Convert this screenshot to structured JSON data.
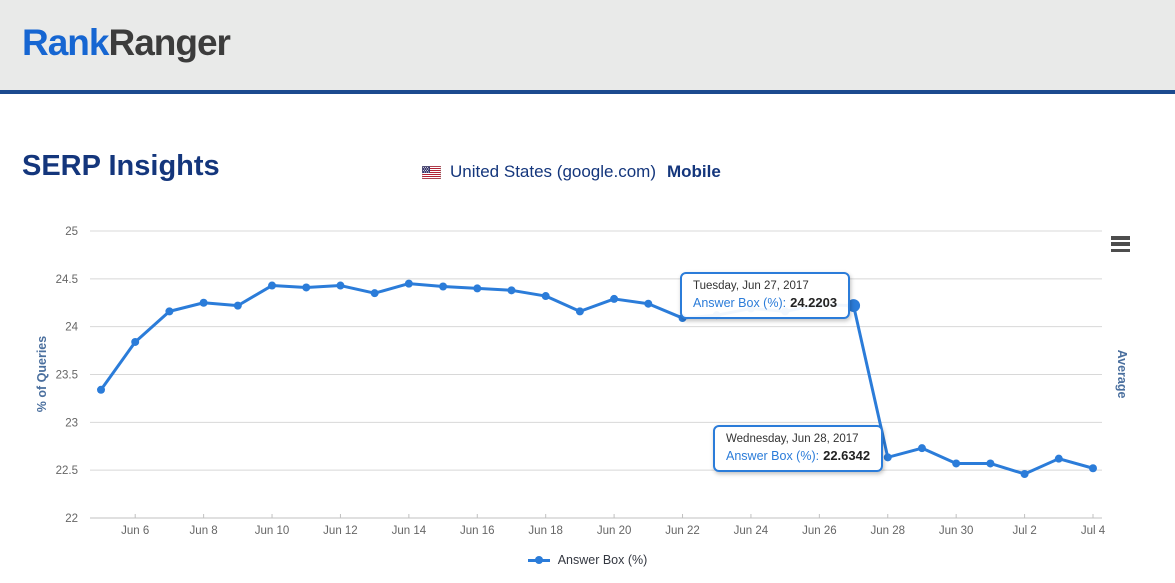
{
  "header": {
    "logo_primary": "Rank",
    "logo_secondary": "Ranger"
  },
  "page": {
    "title": "SERP Insights",
    "subtitle_location": "United States (google.com)",
    "subtitle_device": "Mobile"
  },
  "chart_data": {
    "type": "line",
    "title": "",
    "x": [
      "Jun 5",
      "Jun 6",
      "Jun 7",
      "Jun 8",
      "Jun 9",
      "Jun 10",
      "Jun 11",
      "Jun 12",
      "Jun 13",
      "Jun 14",
      "Jun 15",
      "Jun 16",
      "Jun 17",
      "Jun 18",
      "Jun 19",
      "Jun 20",
      "Jun 21",
      "Jun 22",
      "Jun 23",
      "Jun 24",
      "Jun 25",
      "Jun 26",
      "Jun 27",
      "Jun 28",
      "Jun 29",
      "Jun 30",
      "Jul 1",
      "Jul 2",
      "Jul 3",
      "Jul 4"
    ],
    "series": [
      {
        "name": "Answer Box (%)",
        "color": "#2b7cd9",
        "values": [
          23.34,
          23.84,
          24.16,
          24.25,
          24.22,
          24.43,
          24.41,
          24.43,
          24.35,
          24.45,
          24.42,
          24.4,
          24.38,
          24.32,
          24.16,
          24.29,
          24.24,
          24.09,
          24.12,
          24.19,
          24.16,
          24.23,
          24.2203,
          22.6342,
          22.73,
          22.57,
          22.57,
          22.46,
          22.62,
          22.52
        ]
      }
    ],
    "ylabel_left": "% of Queries",
    "ylabel_right": "Average",
    "ylim": [
      22,
      25
    ],
    "ytick_step": 0.5,
    "xticks": [
      "Jun 6",
      "Jun 8",
      "Jun 10",
      "Jun 12",
      "Jun 14",
      "Jun 16",
      "Jun 18",
      "Jun 20",
      "Jun 22",
      "Jun 24",
      "Jun 26",
      "Jun 28",
      "Jun 30",
      "Jul 2",
      "Jul 4"
    ],
    "grid": true,
    "legend_position": "bottom-center",
    "highlight_point": {
      "x": "Jun 27",
      "value": 24.2203
    }
  },
  "tooltips": [
    {
      "date": "Tuesday, Jun 27, 2017",
      "label": "Answer Box (%)",
      "value": "24.2203"
    },
    {
      "date": "Wednesday, Jun 28, 2017",
      "label": "Answer Box (%)",
      "value": "22.6342"
    }
  ],
  "legend": {
    "label": "Answer Box (%)"
  },
  "colors": {
    "accent_blue": "#2b7cd9",
    "navy": "#14367c",
    "logo_blue": "#1666d2",
    "axis_title": "#4a6f9e",
    "grid": "#d8d8d8",
    "axis_line": "#c0c0c0",
    "tick_label": "#666666",
    "header_bg": "#e9eae9",
    "header_border": "#1c4a8f"
  }
}
